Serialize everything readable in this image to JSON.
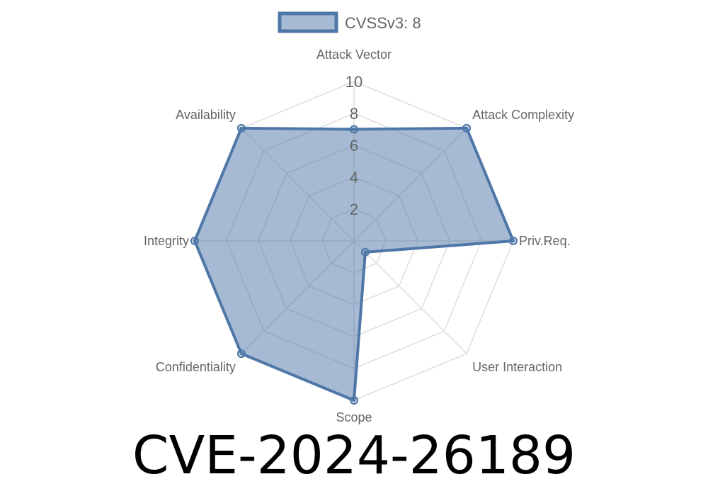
{
  "chart_data": {
    "type": "radar",
    "axes": [
      "Attack Vector",
      "Attack Complexity",
      "Priv.Req.",
      "User Interaction",
      "Scope",
      "Confidentiality",
      "Integrity",
      "Availability"
    ],
    "series": [
      {
        "name": "CVSSv3: 8",
        "values": [
          7,
          10,
          10,
          1,
          10,
          10,
          10,
          10
        ]
      }
    ],
    "rlim": [
      0,
      10
    ],
    "ticks": [
      "2",
      "4",
      "6",
      "8",
      "10"
    ],
    "tick_values": [
      2,
      4,
      6,
      8,
      10
    ],
    "grid": true,
    "legend_position": "top",
    "colors": {
      "stroke": "#4e77a8",
      "fill": "rgba(78,119,168,0.5)",
      "grid": "#dddddd"
    }
  },
  "title": "CVE-2024-26189"
}
